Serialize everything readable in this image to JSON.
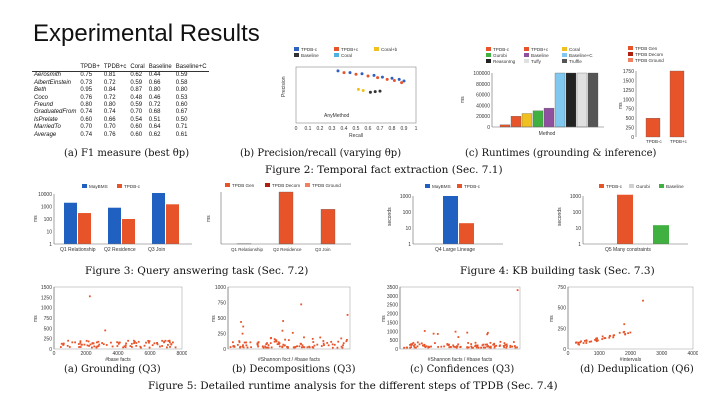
{
  "slide": {
    "title": "Experimental Results"
  },
  "fig2": {
    "caption": "Figure 2:  Temporal fact extraction (Sec. 7.1)",
    "a": {
      "caption": "(a) F1 measure (best θp)",
      "columns": [
        "",
        "TPDB+",
        "TPDB+c",
        "Coral",
        "Baseline",
        "Baseline+C"
      ],
      "rows": [
        [
          "Aerosmith",
          "0.75",
          "0.81",
          "0.62",
          "0.44",
          "0.59"
        ],
        [
          "AlbertEinstein",
          "0.73",
          "0.72",
          "0.59",
          "0.66",
          "0.58"
        ],
        [
          "Beth",
          "0.95",
          "0.84",
          "0.87",
          "0.80",
          "0.80"
        ],
        [
          "Coco",
          "0.76",
          "0.72",
          "0.48",
          "0.46",
          "0.53"
        ],
        [
          "Freund",
          "0.80",
          "0.80",
          "0.59",
          "0.72",
          "0.60"
        ],
        [
          "GraduatedFrom",
          "0.74",
          "0.74",
          "0.70",
          "0.68",
          "0.67"
        ],
        [
          "IsPrelate",
          "0.60",
          "0.66",
          "0.54",
          "0.51",
          "0.50"
        ],
        [
          "MarriedTo",
          "0.70",
          "0.70",
          "0.60",
          "0.64",
          "0.71"
        ],
        [
          "Average",
          "0.74",
          "0.76",
          "0.60",
          "0.62",
          "0.61"
        ]
      ]
    },
    "b": {
      "caption": "(b) Precision/recall (varying θp)"
    },
    "c": {
      "caption": "(c) Runtimes (grounding & inference)"
    }
  },
  "fig3": {
    "caption": "Figure 3:  Query answering task (Sec. 7.2)"
  },
  "fig4": {
    "caption": "Figure 4:  KB building task (Sec. 7.3)"
  },
  "fig5": {
    "caption": "Figure 5:  Detailed runtime analysis for the different steps of TPDB (Sec. 7.4)",
    "a": {
      "caption": "(a) Grounding (Q3)"
    },
    "b": {
      "caption": "(b) Decompositions (Q3)"
    },
    "c": {
      "caption": "(c) Confidences (Q3)"
    },
    "d": {
      "caption": "(d) Deduplication (Q6)"
    }
  },
  "chart_data": [
    {
      "panel": "fig2b",
      "type": "scatter",
      "xlabel": "Recall",
      "ylabel": "Precision",
      "xlim": [
        0,
        1
      ],
      "ylim": [
        0,
        1
      ],
      "x_ticks": [
        "0",
        "0.1",
        "0.2",
        "0.3",
        "0.4",
        "0.5",
        "0.6",
        "0.7",
        "0.8",
        "0.9",
        "1"
      ],
      "annotation": "AnyMethod",
      "legend": [
        "TPDB-c",
        "TPDB+c",
        "Coral+b",
        "Baseline",
        "Coral"
      ],
      "series": [
        {
          "name": "TPDB-c",
          "x": [
            0.35,
            0.45,
            0.55,
            0.65,
            0.72,
            0.8,
            0.86,
            0.9
          ],
          "y": [
            0.93,
            0.9,
            0.88,
            0.85,
            0.82,
            0.8,
            0.78,
            0.75
          ]
        },
        {
          "name": "TPDB+c",
          "x": [
            0.4,
            0.5,
            0.6,
            0.68,
            0.76,
            0.82,
            0.88
          ],
          "y": [
            0.9,
            0.87,
            0.84,
            0.81,
            0.78,
            0.76,
            0.72
          ]
        },
        {
          "name": "Coral",
          "x": [
            0.52,
            0.56
          ],
          "y": [
            0.6,
            0.58
          ]
        },
        {
          "name": "Baseline",
          "x": [
            0.62,
            0.66,
            0.7
          ],
          "y": [
            0.55,
            0.56,
            0.57
          ]
        }
      ],
      "colors": [
        "#3060c0",
        "#e8542a",
        "#f0c020",
        "#333333",
        "#50b0e0"
      ]
    },
    {
      "panel": "fig2c",
      "type": "bar",
      "xlabel": "Method",
      "ylabel": "ms",
      "yticks": [
        "100000",
        "80000",
        "60000",
        "40000",
        "20000",
        "0"
      ],
      "legend": [
        "TPDB-c",
        "TPDB+c",
        "Coral",
        "Gurobi",
        "Baseline",
        "Baseline+C",
        "ReasonIng",
        "Tuffy",
        "Truffle"
      ],
      "categories": [
        "TPDB-c",
        "TPDB+c",
        "Coral",
        "Gurobi",
        "Baseline",
        "Baseline+C",
        "ReasonIng",
        "Tuffy",
        "Truffle"
      ],
      "values": [
        4000,
        20000,
        25000,
        30000,
        35000,
        100000,
        100000,
        100000,
        100000
      ],
      "colors": [
        "#e8542a",
        "#e8542a",
        "#f0c020",
        "#40b040",
        "#9050a0",
        "#80c8f0",
        "#222222",
        "#e0e0e0",
        "#555555"
      ]
    },
    {
      "panel": "fig2c-right",
      "type": "bar",
      "ylabel": "ms",
      "yticks": [
        "1750",
        "1500",
        "1250",
        "1000",
        "750",
        "500",
        "250",
        "0"
      ],
      "legend": [
        "TPDB Gen",
        "TPDB Decom",
        "TPDB Ground"
      ],
      "categories": [
        "TPDB-c",
        "TPDB+c"
      ],
      "values": [
        500,
        1750
      ],
      "colors": [
        "#e8542a",
        "#e8542a"
      ]
    },
    {
      "panel": "fig3",
      "type": "bar",
      "ylabel": "ms",
      "legend": [
        "MayBMS",
        "TPDB-c"
      ],
      "categories": [
        "Q1 Relationship",
        "Q2 Residence",
        "Q3 Join"
      ],
      "series": [
        {
          "name": "MayBMS",
          "values": [
            2000,
            800,
            12000
          ]
        },
        {
          "name": "TPDB-c",
          "values": [
            300,
            100,
            1500
          ]
        }
      ],
      "yticks": [
        "10000",
        "1000",
        "100",
        "10",
        "1"
      ],
      "colors": [
        "#2060c0",
        "#e8542a"
      ]
    },
    {
      "panel": "fig3-right",
      "type": "bar",
      "ylabel": "ms",
      "legend": [
        "TPDB Gen",
        "TPDB Decom",
        "TPDB Ground"
      ],
      "categories": [
        "Q1 Relationship",
        "Q2 Residence",
        "Q3 Join"
      ],
      "values": [
        30,
        6000,
        4000
      ],
      "colors": [
        "#e8542a",
        "#e8542a",
        "#e8542a"
      ]
    },
    {
      "panel": "fig4-left",
      "type": "bar",
      "ylabel": "seconds",
      "legend": [
        "MayBMS",
        "TPDB-c"
      ],
      "categories": [
        "Q4 Large Lineage"
      ],
      "series": [
        {
          "name": "MayBMS",
          "values": [
            1000
          ]
        },
        {
          "name": "TPDB-c",
          "values": [
            20
          ]
        }
      ],
      "yticks": [
        "1000",
        "100",
        "10",
        "1"
      ],
      "colors": [
        "#2060c0",
        "#e8542a"
      ]
    },
    {
      "panel": "fig4-right",
      "type": "bar",
      "ylabel": "seconds",
      "legend": [
        "TPDB-c",
        "Gurobi",
        "Baseline"
      ],
      "categories": [
        "Q5 Many constraints"
      ],
      "series": [
        {
          "name": "TPDB-c",
          "values": [
            1200
          ]
        },
        {
          "name": "Gurobi",
          "values": [
            0
          ]
        },
        {
          "name": "Baseline",
          "values": [
            15
          ]
        }
      ],
      "yticks": [
        "1000",
        "100",
        "10",
        "1"
      ],
      "colors": [
        "#e8542a",
        "#d0d0d0",
        "#40b040"
      ]
    },
    {
      "panel": "fig5a",
      "type": "scatter",
      "ylabel": "ms",
      "xlabel": "#base facts",
      "xticks": [
        "0",
        "2000",
        "4000",
        "6000",
        "8000"
      ],
      "yticks": [
        "1500",
        "1250",
        "1000",
        "750",
        "500",
        "250",
        "0"
      ],
      "color": "#e8542a"
    },
    {
      "panel": "fig5b",
      "type": "scatter",
      "ylabel": "ms",
      "xlabel": "#Shannon foct / #base facts",
      "yticks": [
        "1000",
        "750",
        "500",
        "250",
        "0"
      ],
      "color": "#e8542a"
    },
    {
      "panel": "fig5c",
      "type": "scatter",
      "ylabel": "ms",
      "xlabel": "#Shannon facts / #base facts",
      "yticks": [
        "3500",
        "3000",
        "2500",
        "2000",
        "1500",
        "1000",
        "500",
        "0"
      ],
      "color": "#e8542a"
    },
    {
      "panel": "fig5d",
      "type": "scatter",
      "ylabel": "ms",
      "xlabel": "#intervals",
      "xticks": [
        "0",
        "1000",
        "2000",
        "3000",
        "4000"
      ],
      "yticks": [
        "750",
        "500",
        "250",
        "0"
      ],
      "color": "#e8542a"
    }
  ]
}
